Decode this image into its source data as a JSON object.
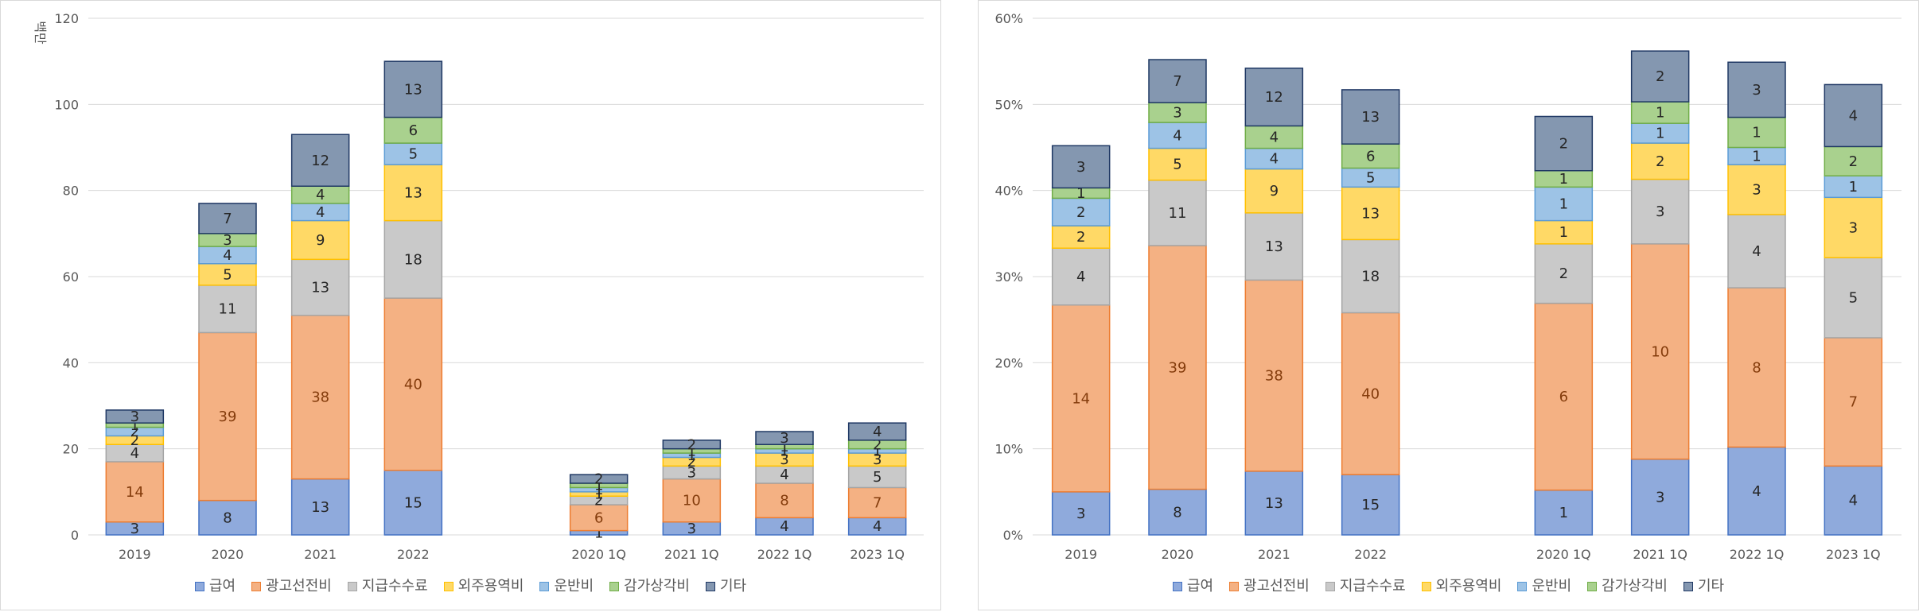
{
  "chart_data": [
    {
      "type": "bar",
      "stacked": true,
      "ylabel": "백만",
      "ylim": [
        0,
        120
      ],
      "yticks": [
        "0",
        "20",
        "40",
        "60",
        "80",
        "100",
        "120"
      ],
      "categories": [
        "2019",
        "2020",
        "2021",
        "2022",
        "",
        "2020 1Q",
        "2021 1Q",
        "2022 1Q",
        "2023 1Q"
      ],
      "series": [
        {
          "name": "급여",
          "values": [
            3,
            8,
            13,
            15,
            null,
            1,
            3,
            4,
            4
          ],
          "color": "#8faadc"
        },
        {
          "name": "광고선전비",
          "values": [
            14,
            39,
            38,
            40,
            null,
            6,
            10,
            8,
            7
          ],
          "color": "#f4b183"
        },
        {
          "name": "지급수수료",
          "values": [
            4,
            11,
            13,
            18,
            null,
            2,
            3,
            4,
            5
          ],
          "color": "#c9c9c9"
        },
        {
          "name": "외주용역비",
          "values": [
            2,
            5,
            9,
            13,
            null,
            1,
            2,
            3,
            3
          ],
          "color": "#ffd966"
        },
        {
          "name": "운반비",
          "values": [
            2,
            4,
            4,
            5,
            null,
            1,
            1,
            1,
            1
          ],
          "color": "#9dc3e6"
        },
        {
          "name": "감가상각비",
          "values": [
            1,
            3,
            4,
            6,
            null,
            1,
            1,
            1,
            2
          ],
          "color": "#a9d18e"
        },
        {
          "name": "기타",
          "values": [
            3,
            7,
            12,
            13,
            null,
            2,
            2,
            3,
            4
          ],
          "color": "#8497b0"
        }
      ],
      "legend": "bottom",
      "grid": true
    },
    {
      "type": "bar",
      "stacked": true,
      "ylim": [
        0,
        60
      ],
      "yticks": [
        "0%",
        "10%",
        "20%",
        "30%",
        "40%",
        "50%",
        "60%"
      ],
      "categories": [
        "2019",
        "2020",
        "2021",
        "2022",
        "",
        "2020 1Q",
        "2021 1Q",
        "2022 1Q",
        "2023 1Q"
      ],
      "series": [
        {
          "name": "급여",
          "values": [
            5.0,
            5.3,
            7.4,
            7.0,
            null,
            5.2,
            8.8,
            10.2,
            8.0
          ],
          "labels": [
            "3",
            "8",
            "13",
            "15",
            "",
            "1",
            "3",
            "4",
            "4"
          ],
          "color": "#8faadc"
        },
        {
          "name": "광고선전비",
          "values": [
            21.7,
            28.3,
            22.2,
            18.8,
            null,
            21.7,
            25.0,
            18.5,
            14.9
          ],
          "labels": [
            "14",
            "39",
            "38",
            "40",
            "",
            "6",
            "10",
            "8",
            "7"
          ],
          "color": "#f4b183"
        },
        {
          "name": "지급수수료",
          "values": [
            6.6,
            7.6,
            7.8,
            8.5,
            null,
            6.9,
            7.5,
            8.5,
            9.3
          ],
          "labels": [
            "4",
            "11",
            "13",
            "18",
            "",
            "2",
            "3",
            "4",
            "5"
          ],
          "color": "#c9c9c9"
        },
        {
          "name": "외주용역비",
          "values": [
            2.6,
            3.7,
            5.1,
            6.1,
            null,
            2.7,
            4.2,
            5.8,
            7.0
          ],
          "labels": [
            "2",
            "5",
            "9",
            "13",
            "",
            "1",
            "2",
            "3",
            "3"
          ],
          "color": "#ffd966"
        },
        {
          "name": "운반비",
          "values": [
            3.2,
            3.0,
            2.4,
            2.2,
            null,
            3.9,
            2.3,
            2.0,
            2.5
          ],
          "labels": [
            "2",
            "4",
            "4",
            "5",
            "",
            "1",
            "1",
            "1",
            "1"
          ],
          "color": "#9dc3e6"
        },
        {
          "name": "감가상각비",
          "values": [
            1.2,
            2.3,
            2.6,
            2.8,
            null,
            1.9,
            2.5,
            3.5,
            3.4
          ],
          "labels": [
            "1",
            "3",
            "4",
            "6",
            "",
            "1",
            "1",
            "1",
            "2"
          ],
          "color": "#a9d18e"
        },
        {
          "name": "기타",
          "values": [
            4.9,
            5.0,
            6.7,
            6.3,
            null,
            6.3,
            5.9,
            6.4,
            7.2
          ],
          "labels": [
            "3",
            "7",
            "12",
            "13",
            "",
            "2",
            "2",
            "3",
            "4"
          ],
          "color": "#8497b0"
        }
      ],
      "legend": "bottom",
      "grid": true
    }
  ]
}
